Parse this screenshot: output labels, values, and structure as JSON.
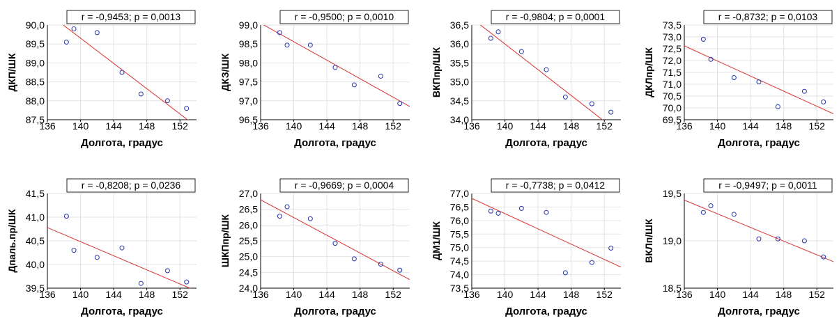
{
  "xlabel": "Долгота, градус",
  "colors": {
    "points": "#2233aa",
    "line": "#d94040",
    "grid": "#e2e2e2",
    "axis": "#000000"
  },
  "chart_data": [
    {
      "type": "scatter",
      "annotation": "r = -0,9453; p = 0,0013",
      "ylabel": "ДКП/ШК",
      "xlabel": "Долгота, градус",
      "xlim": [
        136,
        154
      ],
      "ylim": [
        87.5,
        90.0
      ],
      "xticks": [
        "136",
        "140",
        "144",
        "148",
        "152"
      ],
      "yticks": [
        "87,5",
        "88,0",
        "88,5",
        "89,0",
        "89,5",
        "90,0"
      ],
      "x": [
        138.3,
        139.2,
        142.0,
        145.0,
        147.3,
        150.5,
        152.8
      ],
      "y": [
        89.55,
        89.9,
        89.8,
        88.75,
        88.18,
        88.0,
        87.8
      ],
      "fit": [
        [
          136,
          90.32
        ],
        [
          154,
          87.32
        ]
      ],
      "grid": true
    },
    {
      "type": "scatter",
      "annotation": "r = -0,9500; p = 0,0010",
      "ylabel": "ДКЗ/ШК",
      "xlabel": "Долгота, градус",
      "xlim": [
        136,
        154
      ],
      "ylim": [
        96.5,
        99.0
      ],
      "xticks": [
        "136",
        "140",
        "144",
        "148",
        "152"
      ],
      "yticks": [
        "96,5",
        "97,0",
        "97,5",
        "98,0",
        "98,5",
        "99,0"
      ],
      "x": [
        138.3,
        139.2,
        142.0,
        145.0,
        147.3,
        150.5,
        152.8
      ],
      "y": [
        98.8,
        98.47,
        98.47,
        97.88,
        97.42,
        97.65,
        96.93
      ],
      "fit": [
        [
          136,
          99.05
        ],
        [
          154,
          96.85
        ]
      ],
      "grid": true
    },
    {
      "type": "scatter",
      "annotation": "r = -0,9804; p = 0,0001",
      "ylabel": "ВКПпр/ШК",
      "xlabel": "Долгота, градус",
      "xlim": [
        136,
        154
      ],
      "ylim": [
        34.0,
        36.5
      ],
      "xticks": [
        "136",
        "140",
        "144",
        "148",
        "152"
      ],
      "yticks": [
        "34,0",
        "34,5",
        "35,0",
        "35,5",
        "36,0",
        "36,5"
      ],
      "x": [
        138.3,
        139.2,
        142.0,
        145.0,
        147.3,
        150.5,
        152.8
      ],
      "y": [
        36.15,
        36.32,
        35.8,
        35.32,
        34.6,
        34.42,
        34.2
      ],
      "fit": [
        [
          136,
          36.68
        ],
        [
          154,
          33.62
        ]
      ],
      "grid": true
    },
    {
      "type": "scatter",
      "annotation": "r = -0,8732; p = 0,0103",
      "ylabel": "ДКЛпр/ШК",
      "xlabel": "Долгота, градус",
      "xlim": [
        136,
        154
      ],
      "ylim": [
        69.5,
        73.5
      ],
      "xticks": [
        "136",
        "140",
        "144",
        "148",
        "152"
      ],
      "yticks": [
        "69,5",
        "70,0",
        "70,5",
        "71,0",
        "71,5",
        "72,0",
        "72,5",
        "73,0",
        "73,5"
      ],
      "x": [
        138.3,
        139.2,
        142.0,
        145.0,
        147.3,
        150.5,
        152.8
      ],
      "y": [
        72.9,
        72.05,
        71.28,
        71.1,
        70.05,
        70.7,
        70.25
      ],
      "fit": [
        [
          136,
          72.62
        ],
        [
          154,
          69.75
        ]
      ],
      "grid": true
    },
    {
      "type": "scatter",
      "annotation": "r = -0,8208; p = 0,0236",
      "ylabel": "Дпаль.пр/ШК",
      "xlabel": "Долгота, градус",
      "xlim": [
        136,
        154
      ],
      "ylim": [
        39.5,
        41.5
      ],
      "xticks": [
        "136",
        "140",
        "144",
        "148",
        "152"
      ],
      "yticks": [
        "39,5",
        "40,0",
        "40,5",
        "41,0",
        "41,5"
      ],
      "x": [
        138.3,
        139.2,
        142.0,
        145.0,
        147.3,
        150.5,
        152.8
      ],
      "y": [
        41.02,
        40.3,
        40.15,
        40.35,
        39.6,
        39.87,
        39.63
      ],
      "fit": [
        [
          136,
          40.78
        ],
        [
          154,
          39.44
        ]
      ],
      "grid": true
    },
    {
      "type": "scatter",
      "annotation": "r = -0,9669; p = 0,0004",
      "ylabel": "ШКПпр/ШК",
      "xlabel": "Долгота, градус",
      "xlim": [
        136,
        154
      ],
      "ylim": [
        24.0,
        27.0
      ],
      "xticks": [
        "136",
        "140",
        "144",
        "148",
        "152"
      ],
      "yticks": [
        "24,0",
        "24,5",
        "25,0",
        "25,5",
        "26,0",
        "26,5",
        "27,0"
      ],
      "x": [
        138.3,
        139.2,
        142.0,
        145.0,
        147.3,
        150.5,
        152.8
      ],
      "y": [
        26.28,
        26.58,
        26.2,
        25.42,
        24.93,
        24.76,
        24.57
      ],
      "fit": [
        [
          136,
          26.8
        ],
        [
          154,
          24.27
        ]
      ],
      "grid": true
    },
    {
      "type": "scatter",
      "annotation": "r = -0,7738; p = 0,0412",
      "ylabel": "ДМ1/ШК",
      "xlabel": "Долгота, градус",
      "xlim": [
        136,
        154
      ],
      "ylim": [
        73.5,
        77.0
      ],
      "xticks": [
        "136",
        "140",
        "144",
        "148",
        "152"
      ],
      "yticks": [
        "73,5",
        "74,0",
        "74,5",
        "75,0",
        "75,5",
        "76,0",
        "76,5",
        "77,0"
      ],
      "x": [
        138.3,
        139.2,
        142.0,
        145.0,
        147.3,
        150.5,
        152.8
      ],
      "y": [
        76.35,
        76.27,
        76.45,
        76.3,
        74.07,
        74.45,
        74.98
      ],
      "fit": [
        [
          136,
          76.82
        ],
        [
          154,
          74.28
        ]
      ],
      "grid": true
    },
    {
      "type": "scatter",
      "annotation": "r = -0,9497; p = 0,0011",
      "ylabel": "ВКЛп/ШК",
      "xlabel": "Долгота, градус",
      "xlim": [
        136,
        154
      ],
      "ylim": [
        18.5,
        19.5
      ],
      "xticks": [
        "136",
        "140",
        "144",
        "148",
        "152"
      ],
      "yticks": [
        "18,5",
        "19,0",
        "19,5"
      ],
      "x": [
        138.3,
        139.2,
        142.0,
        145.0,
        147.3,
        150.5,
        152.8
      ],
      "y": [
        19.3,
        19.37,
        19.28,
        19.02,
        19.02,
        19.0,
        18.83
      ],
      "fit": [
        [
          136,
          19.43
        ],
        [
          154,
          18.78
        ]
      ],
      "grid": true
    }
  ]
}
